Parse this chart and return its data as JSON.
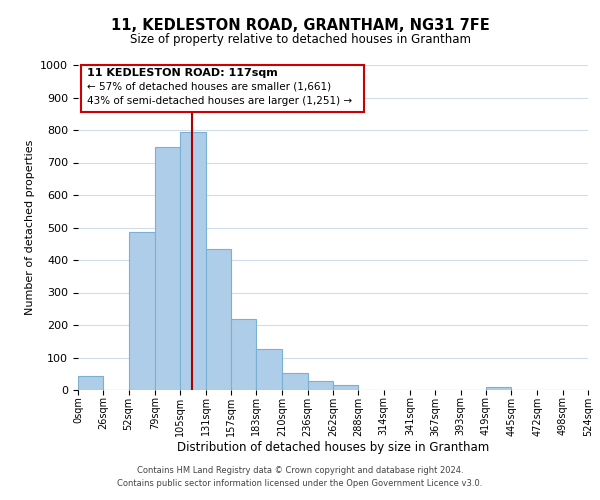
{
  "title": "11, KEDLESTON ROAD, GRANTHAM, NG31 7FE",
  "subtitle": "Size of property relative to detached houses in Grantham",
  "xlabel": "Distribution of detached houses by size in Grantham",
  "ylabel": "Number of detached properties",
  "bin_edges": [
    0,
    26,
    52,
    79,
    105,
    131,
    157,
    183,
    210,
    236,
    262,
    288,
    314,
    341,
    367,
    393,
    419,
    445,
    472,
    498,
    524
  ],
  "bin_counts": [
    42,
    0,
    486,
    748,
    795,
    435,
    220,
    125,
    52,
    28,
    14,
    0,
    0,
    0,
    0,
    0,
    8,
    0,
    0,
    0
  ],
  "bar_color": "#aecde8",
  "bar_edge_color": "#7ab0d4",
  "vline_x": 117,
  "vline_color": "#aa0000",
  "ylim": [
    0,
    1000
  ],
  "yticks": [
    0,
    100,
    200,
    300,
    400,
    500,
    600,
    700,
    800,
    900,
    1000
  ],
  "annotation_title": "11 KEDLESTON ROAD: 117sqm",
  "annotation_line1": "← 57% of detached houses are smaller (1,661)",
  "annotation_line2": "43% of semi-detached houses are larger (1,251) →",
  "annotation_box_color": "#ffffff",
  "annotation_box_edge": "#cc0000",
  "footer_line1": "Contains HM Land Registry data © Crown copyright and database right 2024.",
  "footer_line2": "Contains public sector information licensed under the Open Government Licence v3.0.",
  "tick_labels": [
    "0sqm",
    "26sqm",
    "52sqm",
    "79sqm",
    "105sqm",
    "131sqm",
    "157sqm",
    "183sqm",
    "210sqm",
    "236sqm",
    "262sqm",
    "288sqm",
    "314sqm",
    "341sqm",
    "367sqm",
    "393sqm",
    "419sqm",
    "445sqm",
    "472sqm",
    "498sqm",
    "524sqm"
  ],
  "background_color": "#ffffff",
  "grid_color": "#d0dce8"
}
